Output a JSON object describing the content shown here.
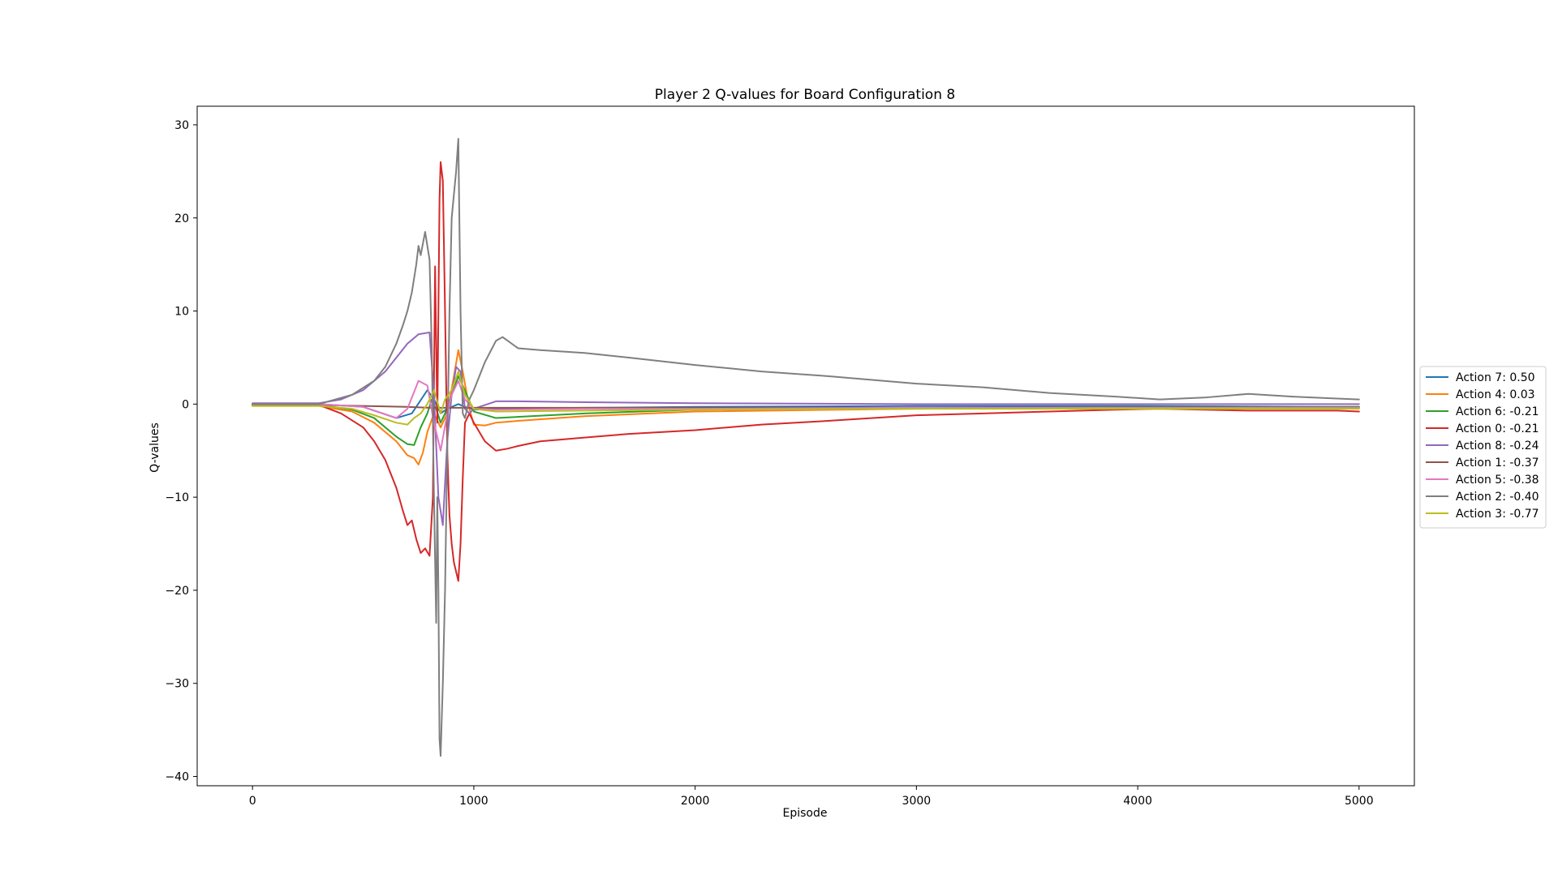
{
  "chart_data": {
    "type": "line",
    "title": "Player 2 Q-values for Board Configuration 8",
    "xlabel": "Episode",
    "ylabel": "Q-values",
    "xlim": [
      -250,
      5250
    ],
    "ylim": [
      -41,
      32
    ],
    "xticks": [
      0,
      1000,
      2000,
      3000,
      4000,
      5000
    ],
    "yticks": [
      30,
      20,
      10,
      0,
      -10,
      -20,
      -30,
      -40
    ],
    "xtick_labels": [
      "0",
      "1000",
      "2000",
      "3000",
      "4000",
      "5000"
    ],
    "ytick_labels": [
      "30",
      "20",
      "10",
      "0",
      "−10",
      "−20",
      "−30",
      "−40"
    ],
    "grid": false,
    "legend_position": "right, outside plot",
    "series": [
      {
        "name": "Action 7: 0.50",
        "color": "#1f77b4",
        "x": [
          0,
          300,
          500,
          650,
          720,
          790,
          820,
          850,
          880,
          900,
          930,
          960,
          1000,
          1100,
          1500,
          2000,
          3000,
          4000,
          5000
        ],
        "y": [
          0,
          0,
          -0.3,
          -1.5,
          -1.0,
          1.5,
          0.5,
          -1.0,
          -0.5,
          -0.3,
          0,
          -0.3,
          -0.6,
          -0.5,
          -0.4,
          -0.3,
          -0.2,
          -0.2,
          -0.3
        ]
      },
      {
        "name": "Action 4: 0.03",
        "color": "#ff7f0e",
        "x": [
          0,
          300,
          450,
          550,
          650,
          700,
          730,
          750,
          770,
          790,
          820,
          850,
          880,
          910,
          930,
          950,
          980,
          1000,
          1050,
          1100,
          1200,
          1500,
          2000,
          3000,
          4000,
          5000
        ],
        "y": [
          -0.2,
          -0.2,
          -0.8,
          -2.0,
          -4.0,
          -5.5,
          -5.8,
          -6.5,
          -5.2,
          -3.0,
          -1.0,
          -2.5,
          -1.0,
          3.0,
          5.8,
          3.5,
          -0.5,
          -2.2,
          -2.3,
          -2.0,
          -1.8,
          -1.3,
          -0.8,
          -0.5,
          -0.4,
          -0.3
        ]
      },
      {
        "name": "Action 6: -0.21",
        "color": "#2ca02c",
        "x": [
          0,
          300,
          450,
          550,
          650,
          700,
          730,
          760,
          790,
          810,
          830,
          850,
          870,
          900,
          930,
          950,
          1000,
          1100,
          1500,
          2000,
          3000,
          4000,
          5000
        ],
        "y": [
          -0.1,
          -0.1,
          -0.6,
          -1.5,
          -3.5,
          -4.3,
          -4.4,
          -2.5,
          -1.0,
          0.5,
          -0.5,
          -2.0,
          -1.0,
          1.0,
          3.0,
          2.0,
          -0.8,
          -1.5,
          -1.0,
          -0.6,
          -0.4,
          -0.3,
          -0.3
        ]
      },
      {
        "name": "Action 0: -0.21",
        "color": "#d62728",
        "x": [
          0,
          300,
          400,
          500,
          550,
          600,
          650,
          680,
          700,
          720,
          740,
          760,
          780,
          800,
          815,
          825,
          835,
          845,
          850,
          860,
          870,
          880,
          890,
          900,
          910,
          920,
          930,
          940,
          950,
          960,
          980,
          1000,
          1050,
          1100,
          1150,
          1200,
          1300,
          1500,
          1700,
          2000,
          2300,
          2600,
          3000,
          3300,
          3600,
          3900,
          4100,
          4300,
          4500,
          4700,
          4900,
          5000
        ],
        "y": [
          -0.1,
          -0.1,
          -1.0,
          -2.5,
          -4.0,
          -6.0,
          -9.0,
          -11.5,
          -13.0,
          -12.5,
          -14.5,
          -16.0,
          -15.5,
          -16.3,
          -10.0,
          14.8,
          -2.0,
          22.0,
          26.0,
          24.0,
          10.0,
          -5.0,
          -12.0,
          -15.0,
          -17.0,
          -18.0,
          -19.0,
          -15.0,
          -8.0,
          -2.0,
          -1.0,
          -2.0,
          -4.0,
          -5.0,
          -4.8,
          -4.5,
          -4.0,
          -3.6,
          -3.2,
          -2.8,
          -2.2,
          -1.8,
          -1.2,
          -1.0,
          -0.8,
          -0.6,
          -0.5,
          -0.6,
          -0.7,
          -0.7,
          -0.7,
          -0.8
        ]
      },
      {
        "name": "Action 8: -0.24",
        "color": "#9467bd",
        "x": [
          0,
          300,
          400,
          500,
          600,
          650,
          700,
          750,
          800,
          820,
          840,
          860,
          880,
          900,
          920,
          940,
          960,
          980,
          1000,
          1100,
          1200,
          1500,
          2000,
          3000,
          4000,
          5000
        ],
        "y": [
          0.1,
          0.1,
          0.5,
          1.5,
          3.5,
          5.0,
          6.5,
          7.5,
          7.7,
          1.0,
          -10.0,
          -13.0,
          -4.0,
          1.0,
          4.0,
          3.5,
          -0.5,
          -1.0,
          -0.5,
          0.3,
          0.3,
          0.2,
          0.1,
          0.0,
          0.0,
          0.0
        ]
      },
      {
        "name": "Action 1: -0.37",
        "color": "#8c564b",
        "x": [
          0,
          300,
          500,
          700,
          800,
          900,
          1000,
          1500,
          2000,
          3000,
          4000,
          5000
        ],
        "y": [
          -0.1,
          -0.1,
          -0.2,
          -0.3,
          -0.4,
          -0.4,
          -0.4,
          -0.4,
          -0.4,
          -0.4,
          -0.4,
          -0.4
        ]
      },
      {
        "name": "Action 5: -0.38",
        "color": "#e377c2",
        "x": [
          0,
          300,
          500,
          650,
          700,
          750,
          790,
          820,
          850,
          880,
          900,
          930,
          960,
          1000,
          1100,
          1500,
          2000,
          3000,
          4000,
          5000
        ],
        "y": [
          0,
          0,
          -0.3,
          -1.5,
          -0.5,
          2.5,
          2.0,
          -2.0,
          -5.0,
          -1.0,
          1.0,
          2.5,
          0.5,
          -0.5,
          -0.6,
          -0.5,
          -0.5,
          -0.4,
          -0.4,
          -0.4
        ]
      },
      {
        "name": "Action 2: -0.40",
        "color": "#7f7f7f",
        "x": [
          0,
          300,
          450,
          550,
          600,
          650,
          680,
          700,
          720,
          740,
          750,
          760,
          780,
          790,
          800,
          810,
          820,
          830,
          835,
          840,
          845,
          850,
          860,
          870,
          880,
          890,
          900,
          920,
          930,
          940,
          950,
          960,
          980,
          1000,
          1050,
          1100,
          1130,
          1200,
          1300,
          1500,
          1700,
          2000,
          2300,
          2600,
          3000,
          3300,
          3600,
          3900,
          4100,
          4300,
          4500,
          4700,
          4900,
          5000
        ],
        "y": [
          0,
          0,
          1.0,
          2.5,
          4.0,
          6.5,
          8.5,
          10.0,
          12.0,
          15.0,
          17.0,
          16.0,
          18.5,
          17.0,
          15.5,
          6.0,
          -10.0,
          -23.5,
          -10.0,
          -20.0,
          -36.0,
          -37.8,
          -30.0,
          -20.0,
          -5.0,
          10.0,
          20.0,
          25.0,
          28.5,
          10.0,
          -1.0,
          -1.5,
          0.5,
          1.5,
          4.5,
          6.8,
          7.2,
          6.0,
          5.8,
          5.5,
          5.0,
          4.2,
          3.5,
          3.0,
          2.2,
          1.8,
          1.2,
          0.8,
          0.5,
          0.7,
          1.1,
          0.8,
          0.6,
          0.5
        ]
      },
      {
        "name": "Action 3: -0.77",
        "color": "#bcbd22",
        "x": [
          0,
          300,
          450,
          550,
          650,
          700,
          730,
          760,
          790,
          820,
          850,
          870,
          900,
          930,
          960,
          1000,
          1100,
          1500,
          2000,
          3000,
          4000,
          5000
        ],
        "y": [
          -0.2,
          -0.2,
          -0.5,
          -1.2,
          -2.0,
          -2.2,
          -1.5,
          -1.0,
          0.0,
          1.5,
          -1.0,
          0.5,
          1.5,
          3.5,
          1.0,
          -0.5,
          -0.8,
          -0.7,
          -0.6,
          -0.5,
          -0.5,
          -0.5
        ]
      }
    ]
  }
}
